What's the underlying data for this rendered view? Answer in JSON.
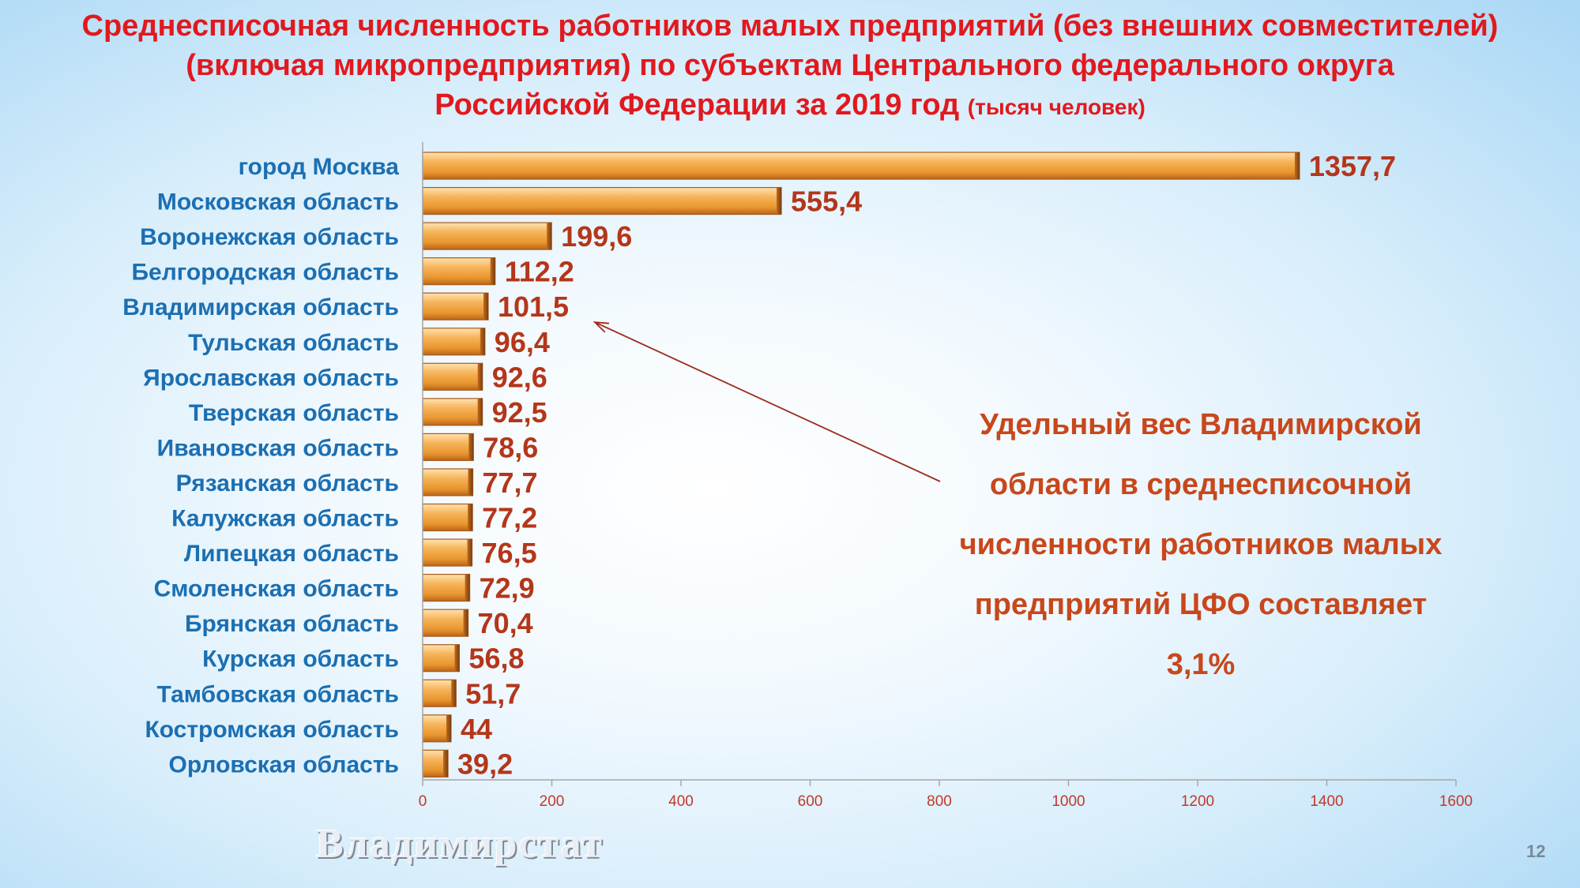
{
  "title": {
    "line1": "Среднесписочная численность работников малых предприятий (без внешних совместителей)",
    "line2": "(включая микропредприятия) по субъектам Центрального федерального округа",
    "line3": "Российской Федерации за 2019 год",
    "unit": "(тысяч человек)"
  },
  "annotation": {
    "line1": "Удельный вес Владимирской",
    "line2": "области в среднесписочной",
    "line3": "численности работников малых",
    "line4": "предприятий ЦФО составляет",
    "line5": "3,1%"
  },
  "watermark": "Владимирстат",
  "page_number": "12",
  "colors": {
    "title": "#e1191e",
    "category_labels": "#1b6fb2",
    "value_labels": "#b4361a",
    "bar": "#f3a94b",
    "annotation": "#c8471b",
    "arrow": "#9e2a1e"
  },
  "chart_data": {
    "type": "bar",
    "orientation": "horizontal",
    "categories": [
      "город Москва",
      "Московская область",
      "Воронежская область",
      "Белгородская область",
      "Владимирская область",
      "Тульская область",
      "Ярославская область",
      "Тверская область",
      "Ивановская область",
      "Рязанская область",
      "Калужская область",
      "Липецкая область",
      "Смоленская область",
      "Брянская область",
      "Курская область",
      "Тамбовская область",
      "Костромская область",
      "Орловская область"
    ],
    "values": [
      1357.7,
      555.4,
      199.6,
      112.2,
      101.5,
      96.4,
      92.6,
      92.5,
      78.6,
      77.7,
      77.2,
      76.5,
      72.9,
      70.4,
      56.8,
      51.7,
      44,
      39.2
    ],
    "value_labels": [
      "1357,7",
      "555,4",
      "199,6",
      "112,2",
      "101,5",
      "96,4",
      "92,6",
      "92,5",
      "78,6",
      "77,7",
      "77,2",
      "76,5",
      "72,9",
      "70,4",
      "56,8",
      "51,7",
      "44",
      "39,2"
    ],
    "xlim": [
      0,
      1600
    ],
    "xticks": [
      0,
      200,
      400,
      600,
      800,
      1000,
      1200,
      1400,
      1600
    ],
    "xlabel": "",
    "ylabel": "",
    "grid": false,
    "legend": "none",
    "highlight_category": "Владимирская область"
  }
}
